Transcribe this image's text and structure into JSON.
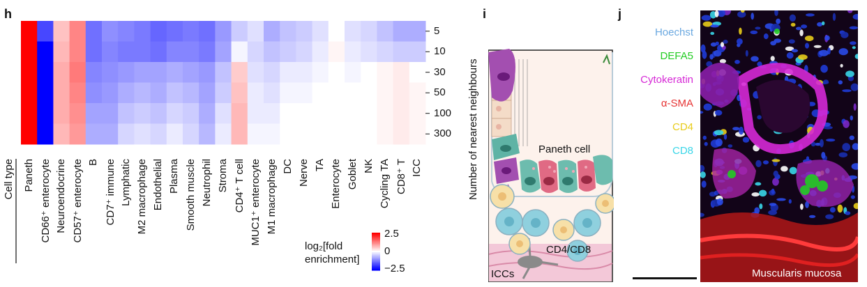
{
  "panels": {
    "h": "h",
    "i": "i",
    "j": "j"
  },
  "chart_data": {
    "type": "heatmap",
    "xlabel": "Cell type",
    "ylabel": "Number of nearest neighbours",
    "rows": [
      "5",
      "10",
      "30",
      "50",
      "100",
      "300"
    ],
    "columns": [
      "Paneth",
      "CD66⁺ enterocyte",
      "Neuroendocrine",
      "CD57⁺ enterocyte",
      "B",
      "CD7⁺ immune",
      "Lymphatic",
      "M2 macrophage",
      "Endothelial",
      "Plasma",
      "Smooth muscle",
      "Neutrophil",
      "Stroma",
      "CD4⁺ T cell",
      "MUC1⁺ enterocyte",
      "M1 macrophage",
      "DC",
      "Nerve",
      "TA",
      "Enterocyte",
      "Goblet",
      "NK",
      "Cycling TA",
      "CD8⁺ T",
      "ICC"
    ],
    "values": [
      [
        2.5,
        -1.8,
        0.6,
        1.2,
        -1.4,
        -1.1,
        -1.2,
        -1.3,
        -1.5,
        -1.4,
        -1.3,
        -1.4,
        -1.0,
        -0.5,
        -0.3,
        -0.8,
        -0.6,
        -0.5,
        -0.3,
        0.0,
        -0.3,
        -0.4,
        -0.6,
        -0.8,
        -0.8
      ],
      [
        2.5,
        -2.5,
        0.7,
        1.2,
        -1.4,
        -1.2,
        -1.3,
        -1.3,
        -1.4,
        -1.2,
        -1.2,
        -1.3,
        -0.9,
        -0.1,
        -0.4,
        -0.6,
        -0.5,
        -0.4,
        -0.2,
        0.1,
        -0.2,
        -0.3,
        -0.4,
        -0.5,
        -0.5
      ],
      [
        2.5,
        -2.5,
        0.8,
        1.3,
        -1.2,
        -1.1,
        -1.0,
        -0.9,
        -0.9,
        -0.8,
        -0.9,
        -1.0,
        -0.6,
        0.5,
        -0.3,
        -0.4,
        -0.2,
        -0.2,
        -0.1,
        0.0,
        -0.1,
        0.0,
        0.1,
        0.2,
        0.0
      ],
      [
        2.5,
        -2.5,
        0.8,
        1.2,
        -1.1,
        -1.0,
        -0.8,
        -0.7,
        -0.8,
        -0.6,
        -0.7,
        -0.9,
        -0.5,
        0.6,
        -0.2,
        -0.3,
        -0.1,
        -0.1,
        0.0,
        0.0,
        0.0,
        0.0,
        0.1,
        0.2,
        0.1
      ],
      [
        2.5,
        -2.5,
        0.8,
        1.1,
        -0.9,
        -0.9,
        -0.6,
        -0.5,
        -0.6,
        -0.4,
        -0.5,
        -0.8,
        -0.3,
        0.7,
        -0.2,
        -0.2,
        0.0,
        0.0,
        0.0,
        0.0,
        0.0,
        0.0,
        0.1,
        0.2,
        0.1
      ],
      [
        2.5,
        -2.5,
        0.7,
        1.0,
        -0.8,
        -0.8,
        -0.4,
        -0.3,
        -0.4,
        -0.2,
        -0.4,
        -0.7,
        -0.2,
        0.7,
        -0.1,
        -0.1,
        0.0,
        0.0,
        0.0,
        0.0,
        0.0,
        0.0,
        0.1,
        0.2,
        0.1
      ]
    ],
    "zlim": [
      -2.5,
      2.5
    ],
    "colorbar": {
      "label": "log₂[fold enrichment]",
      "ticks": [
        "2.5",
        "0",
        "−2.5"
      ]
    },
    "colors": {
      "high": "#ff0000",
      "mid": "#ffffff",
      "low": "#0000ff"
    }
  },
  "legend": {
    "line1": "log₂[fold",
    "line2": "enrichment]"
  },
  "diagram": {
    "paneth_label": "Paneth cell",
    "cd4cd8_label": "CD4/CD8",
    "iccs_label": "ICCs"
  },
  "micrograph": {
    "stains": [
      {
        "name": "Hoechst",
        "color": "#6aa8e0"
      },
      {
        "name": "DEFA5",
        "color": "#22cc22"
      },
      {
        "name": "Cytokeratin",
        "color": "#d629d6"
      },
      {
        "name": "α-SMA",
        "color": "#e63333"
      },
      {
        "name": "CD4",
        "color": "#e8cc1a"
      },
      {
        "name": "CD8",
        "color": "#3ad6e8"
      }
    ],
    "region_label": "Muscularis mucosa"
  }
}
